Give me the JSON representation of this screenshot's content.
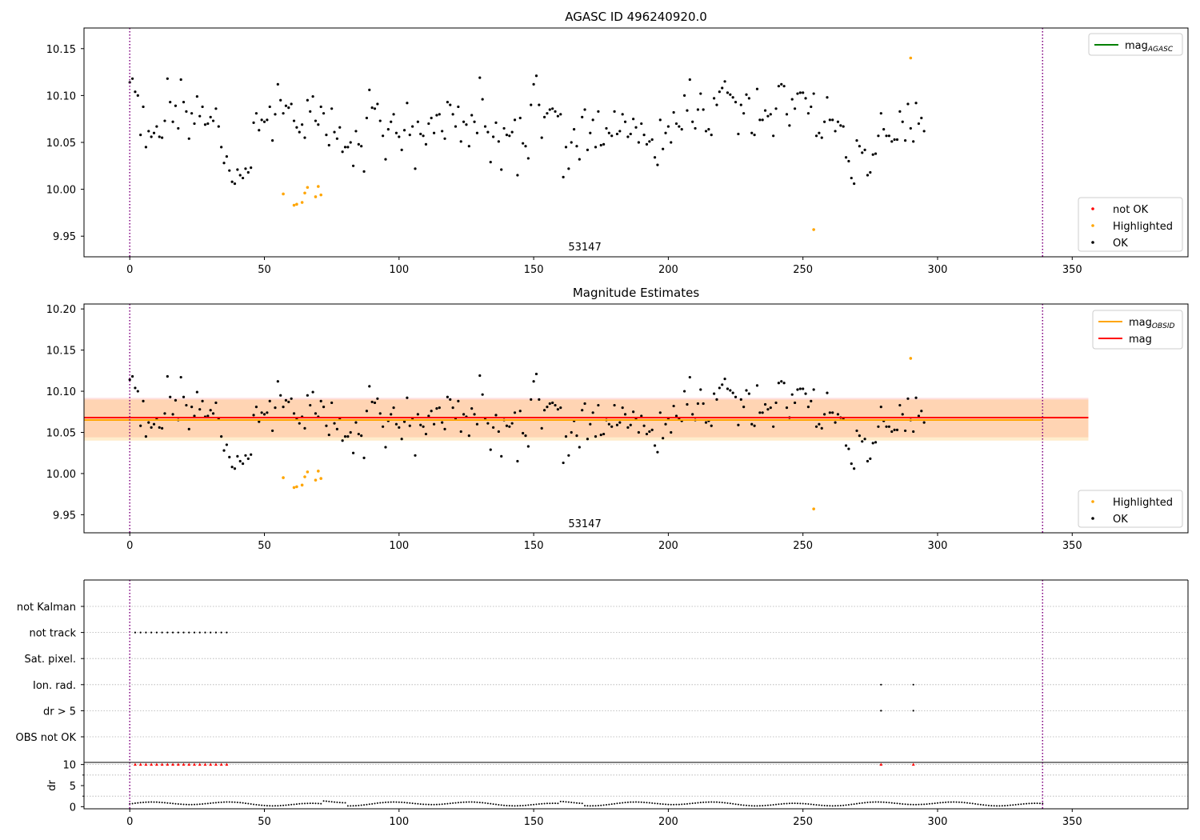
{
  "chart_data": [
    {
      "type": "scatter",
      "title": "AGASC ID 496240920.0",
      "xlim": [
        -17,
        393
      ],
      "ylim": [
        9.928,
        10.172
      ],
      "x_ticks": [
        0,
        50,
        100,
        150,
        200,
        250,
        300,
        350
      ],
      "y_ticks": [
        9.95,
        10.0,
        10.05,
        10.1,
        10.15
      ],
      "y_tick_labels": [
        "9.95",
        "10.00",
        "10.05",
        "10.10",
        "10.15"
      ],
      "vlines": [
        0,
        339
      ],
      "annotations": [
        {
          "text": "53147",
          "x": 169,
          "y": 9.935
        }
      ],
      "legend_top": {
        "placement": "upper right",
        "entries": [
          {
            "label": "mag",
            "sub": "AGASC",
            "color": "#008000",
            "kind": "line"
          }
        ]
      },
      "legend_bottom": {
        "placement": "lower right",
        "entries": [
          {
            "label": "not OK",
            "color": "#ff0000",
            "kind": "marker"
          },
          {
            "label": "Highlighted",
            "color": "#ffa500",
            "kind": "marker"
          },
          {
            "label": "OK",
            "color": "#000000",
            "kind": "marker"
          }
        ]
      },
      "series": [
        {
          "name": "OK",
          "color": "#000000",
          "x_start": 0,
          "x_end": 339,
          "values": [
            10.114,
            10.118,
            10.104,
            10.1,
            10.058,
            10.088,
            10.045,
            10.062,
            10.056,
            10.06,
            10.067,
            10.056,
            10.055,
            10.073,
            10.118,
            10.093,
            10.072,
            10.089,
            10.065,
            10.117,
            10.093,
            10.083,
            10.054,
            10.081,
            10.07,
            10.099,
            10.078,
            10.088,
            10.069,
            10.07,
            10.077,
            10.073,
            10.086,
            10.067,
            10.045,
            10.028,
            10.035,
            10.02,
            10.008,
            10.006,
            10.021,
            10.015,
            10.012,
            10.022,
            10.018,
            10.023,
            10.071,
            10.081,
            10.063,
            10.074,
            10.072,
            10.074,
            10.088,
            10.052,
            10.08,
            10.112,
            10.095,
            10.081,
            10.089,
            10.087,
            10.091,
            10.073,
            10.066,
            10.061,
            10.069,
            10.055,
            10.095,
            10.083,
            10.099,
            10.073,
            10.069,
            10.088,
            10.081,
            10.058,
            10.047,
            10.086,
            10.061,
            10.054,
            10.066,
            10.04,
            10.045,
            10.045,
            10.05,
            10.025,
            10.062,
            10.048,
            10.046,
            10.019,
            10.076,
            10.106,
            10.087,
            10.086,
            10.091,
            10.073,
            10.057,
            10.032,
            10.064,
            10.072,
            10.08,
            10.06,
            10.056,
            10.042,
            10.063,
            10.092,
            10.058,
            10.067,
            10.022,
            10.072,
            10.059,
            10.057,
            10.048,
            10.07,
            10.076,
            10.06,
            10.079,
            10.08,
            10.062,
            10.054,
            10.093,
            10.09,
            10.08,
            10.067,
            10.088,
            10.051,
            10.072,
            10.069,
            10.046,
            10.079,
            10.072,
            10.06,
            10.119,
            10.096,
            10.067,
            10.061,
            10.029,
            10.056,
            10.071,
            10.051,
            10.021,
            10.065,
            10.058,
            10.057,
            10.061,
            10.074,
            10.015,
            10.076,
            10.049,
            10.046,
            10.033,
            10.09,
            10.112,
            10.121,
            10.09,
            10.055,
            10.077,
            10.081,
            10.085,
            10.086,
            10.083,
            10.078,
            10.08,
            10.013,
            10.045,
            10.022,
            10.05,
            10.064,
            10.046,
            10.032,
            10.077,
            10.085,
            10.042,
            10.06,
            10.074,
            10.045,
            10.083,
            10.047,
            10.048,
            10.065,
            10.06,
            10.057,
            10.083,
            10.059,
            10.062,
            10.08,
            10.072,
            10.056,
            10.059,
            10.075,
            10.066,
            10.05,
            10.07,
            10.058,
            10.048,
            10.051,
            10.053,
            10.034,
            10.026,
            10.074,
            10.043,
            10.06,
            10.067,
            10.05,
            10.082,
            10.07,
            10.067,
            10.064,
            10.1,
            10.084,
            10.117,
            10.072,
            10.065,
            10.085,
            10.102,
            10.085,
            10.062,
            10.064,
            10.058,
            10.097,
            10.09,
            10.104,
            10.108,
            10.115,
            10.103,
            10.101,
            10.098,
            10.093,
            10.059,
            10.09,
            10.081,
            10.101,
            10.097,
            10.06,
            10.058,
            10.107,
            10.074,
            10.074,
            10.084,
            10.078,
            10.08,
            10.057,
            10.086,
            10.11,
            10.112,
            10.11,
            10.08,
            10.068,
            10.096,
            10.086,
            10.102,
            10.103,
            10.103,
            10.097,
            10.081,
            10.088,
            10.102,
            10.057,
            10.06,
            10.055,
            10.072,
            10.098,
            10.074,
            10.074,
            10.062,
            10.072,
            10.068,
            10.067,
            10.034,
            10.03,
            10.012,
            10.006,
            10.052,
            10.046,
            10.039,
            10.042,
            10.015,
            10.018,
            10.037,
            10.038,
            10.057,
            10.081,
            10.064,
            10.057,
            10.057,
            10.051,
            10.053,
            10.053,
            10.083,
            10.072,
            10.052,
            10.091,
            10.065,
            10.051,
            10.092,
            10.07,
            10.076,
            10.062
          ]
        },
        {
          "name": "Highlighted",
          "color": "#ffa500",
          "x": [
            57,
            61,
            62,
            64,
            65,
            66,
            69,
            70,
            71,
            254,
            290
          ],
          "y": [
            9.995,
            9.983,
            9.984,
            9.986,
            9.996,
            10.002,
            9.992,
            10.003,
            9.994,
            9.957,
            10.14
          ]
        }
      ]
    },
    {
      "type": "scatter",
      "title": "Magnitude Estimates",
      "xlim": [
        -17,
        393
      ],
      "ylim": [
        9.928,
        10.206
      ],
      "x_ticks": [
        0,
        50,
        100,
        150,
        200,
        250,
        300,
        350
      ],
      "y_ticks": [
        9.95,
        10.0,
        10.05,
        10.1,
        10.15,
        10.2
      ],
      "y_tick_labels": [
        "9.95",
        "10.00",
        "10.05",
        "10.10",
        "10.15",
        "10.20"
      ],
      "vlines": [
        0,
        339
      ],
      "annotations": [
        {
          "text": "53147",
          "x": 169,
          "y": 9.935
        }
      ],
      "mag": {
        "value": 10.068,
        "band": [
          10.044,
          10.092
        ],
        "color": "#ff0000"
      },
      "mag_obsid": {
        "value": 10.065,
        "band": [
          10.04,
          10.09
        ],
        "color": "#ffa500"
      },
      "band_x": [
        -17,
        356
      ],
      "legend_top": {
        "placement": "upper right",
        "entries": [
          {
            "label": "mag",
            "sub": "OBSID",
            "color": "#ffa500",
            "kind": "line"
          },
          {
            "label": "mag",
            "sub": "",
            "color": "#ff0000",
            "kind": "line"
          }
        ]
      },
      "legend_bottom": {
        "placement": "lower right",
        "entries": [
          {
            "label": "Highlighted",
            "color": "#ffa500",
            "kind": "marker"
          },
          {
            "label": "OK",
            "color": "#000000",
            "kind": "marker"
          }
        ]
      }
    },
    {
      "type": "scatter",
      "xlim": [
        -17,
        393
      ],
      "categories": [
        "not Kalman",
        "not track",
        "Sat. pixel.",
        "Ion. rad.",
        "dr > 5",
        "OBS not OK"
      ],
      "x_ticks": [
        0,
        50,
        100,
        150,
        200,
        250,
        300,
        350
      ],
      "vlines": [
        0,
        339
      ],
      "flags": {
        "not track": {
          "x_start": 2,
          "x_end": 36,
          "step": 2
        },
        "Ion. rad.": {
          "x": [
            279,
            291
          ]
        },
        "dr > 5": {
          "x": [
            279,
            291
          ]
        }
      }
    },
    {
      "type": "scatter",
      "xlim": [
        -17,
        393
      ],
      "ylim": [
        -0.5,
        10.5
      ],
      "ylabel": "dr",
      "y_ticks": [
        0,
        5,
        10
      ],
      "x_ticks": [
        0,
        50,
        100,
        150,
        200,
        250,
        300,
        350
      ],
      "x_tick_labels": [
        "0",
        "50",
        "100",
        "150",
        "200",
        "250",
        "300",
        "350"
      ],
      "vlines": [
        0,
        339
      ],
      "clipped_marker": {
        "value": 10,
        "color": "#ff0000",
        "x_start": 2,
        "x_end": 36,
        "step": 2,
        "extra_x": [
          279,
          291
        ]
      }
    }
  ]
}
